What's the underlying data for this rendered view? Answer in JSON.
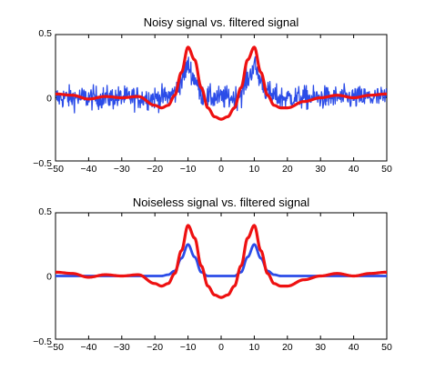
{
  "chart_data": [
    {
      "type": "line",
      "title": "Noisy signal vs.  filtered signal",
      "xlabel": "",
      "ylabel": "",
      "xlim": [
        -50,
        50
      ],
      "ylim": [
        -0.5,
        0.5
      ],
      "grid": false,
      "x_ticks": [
        -50,
        -40,
        -30,
        -20,
        -10,
        0,
        10,
        20,
        30,
        40,
        50
      ],
      "x_tick_labels": [
        "−50",
        "−40",
        "−30",
        "−20",
        "−10",
        "0",
        "10",
        "20",
        "30",
        "40",
        "50"
      ],
      "y_ticks": [
        -0.5,
        0,
        0.5
      ],
      "y_tick_labels": [
        "−0.5",
        "0",
        "0.5"
      ],
      "x": [
        -50,
        -45,
        -40,
        -35,
        -30,
        -25,
        -20,
        -18,
        -16,
        -14,
        -12,
        -10,
        -8,
        -6,
        -4,
        -2,
        0,
        2,
        4,
        6,
        8,
        10,
        12,
        14,
        16,
        18,
        20,
        25,
        30,
        35,
        40,
        45,
        50
      ],
      "series": [
        {
          "color": "#2b4ce8",
          "noise_amplitude": 0.1,
          "values": [
            0.0,
            0.0,
            0.0,
            0.0,
            0.0,
            0.0,
            0.0,
            0.0,
            0.01,
            0.04,
            0.14,
            0.25,
            0.15,
            0.03,
            0.0,
            0.0,
            0.0,
            0.0,
            0.0,
            0.03,
            0.15,
            0.25,
            0.14,
            0.04,
            0.01,
            0.0,
            0.0,
            0.0,
            0.0,
            0.0,
            0.0,
            0.0,
            0.0
          ]
        },
        {
          "color": "#ee1111",
          "values": [
            0.03,
            0.02,
            -0.01,
            0.01,
            0.0,
            0.01,
            -0.06,
            -0.08,
            -0.06,
            0.02,
            0.2,
            0.4,
            0.3,
            0.08,
            -0.08,
            -0.15,
            -0.17,
            -0.15,
            -0.08,
            0.08,
            0.3,
            0.4,
            0.2,
            0.02,
            -0.06,
            -0.08,
            -0.08,
            -0.03,
            0.0,
            0.02,
            0.0,
            0.02,
            0.03
          ]
        }
      ]
    },
    {
      "type": "line",
      "title": "Noiseless signal vs. filtered signal",
      "xlabel": "",
      "ylabel": "",
      "xlim": [
        -50,
        50
      ],
      "ylim": [
        -0.5,
        0.5
      ],
      "grid": false,
      "x_ticks": [
        -50,
        -40,
        -30,
        -20,
        -10,
        0,
        10,
        20,
        30,
        40,
        50
      ],
      "x_tick_labels": [
        "−50",
        "−40",
        "−30",
        "−20",
        "−10",
        "0",
        "10",
        "20",
        "30",
        "40",
        "50"
      ],
      "y_ticks": [
        -0.5,
        0,
        0.5
      ],
      "y_tick_labels": [
        "−0.5",
        "0",
        "0.5"
      ],
      "x": [
        -50,
        -45,
        -40,
        -35,
        -30,
        -25,
        -20,
        -18,
        -16,
        -14,
        -12,
        -10,
        -8,
        -6,
        -4,
        -2,
        0,
        2,
        4,
        6,
        8,
        10,
        12,
        14,
        16,
        18,
        20,
        25,
        30,
        35,
        40,
        45,
        50
      ],
      "series": [
        {
          "color": "#2b4ce8",
          "values": [
            0.0,
            0.0,
            0.0,
            0.0,
            0.0,
            0.0,
            0.0,
            0.0,
            0.01,
            0.04,
            0.14,
            0.25,
            0.15,
            0.03,
            0.0,
            0.0,
            0.0,
            0.0,
            0.0,
            0.03,
            0.15,
            0.25,
            0.14,
            0.04,
            0.01,
            0.0,
            0.0,
            0.0,
            0.0,
            0.0,
            0.0,
            0.0,
            0.0
          ]
        },
        {
          "color": "#ee1111",
          "values": [
            0.03,
            0.02,
            -0.01,
            0.01,
            0.0,
            0.01,
            -0.06,
            -0.08,
            -0.06,
            0.02,
            0.2,
            0.4,
            0.3,
            0.08,
            -0.08,
            -0.15,
            -0.17,
            -0.15,
            -0.08,
            0.08,
            0.3,
            0.4,
            0.2,
            0.02,
            -0.06,
            -0.08,
            -0.08,
            -0.03,
            0.0,
            0.02,
            0.0,
            0.02,
            0.03
          ]
        }
      ]
    }
  ]
}
